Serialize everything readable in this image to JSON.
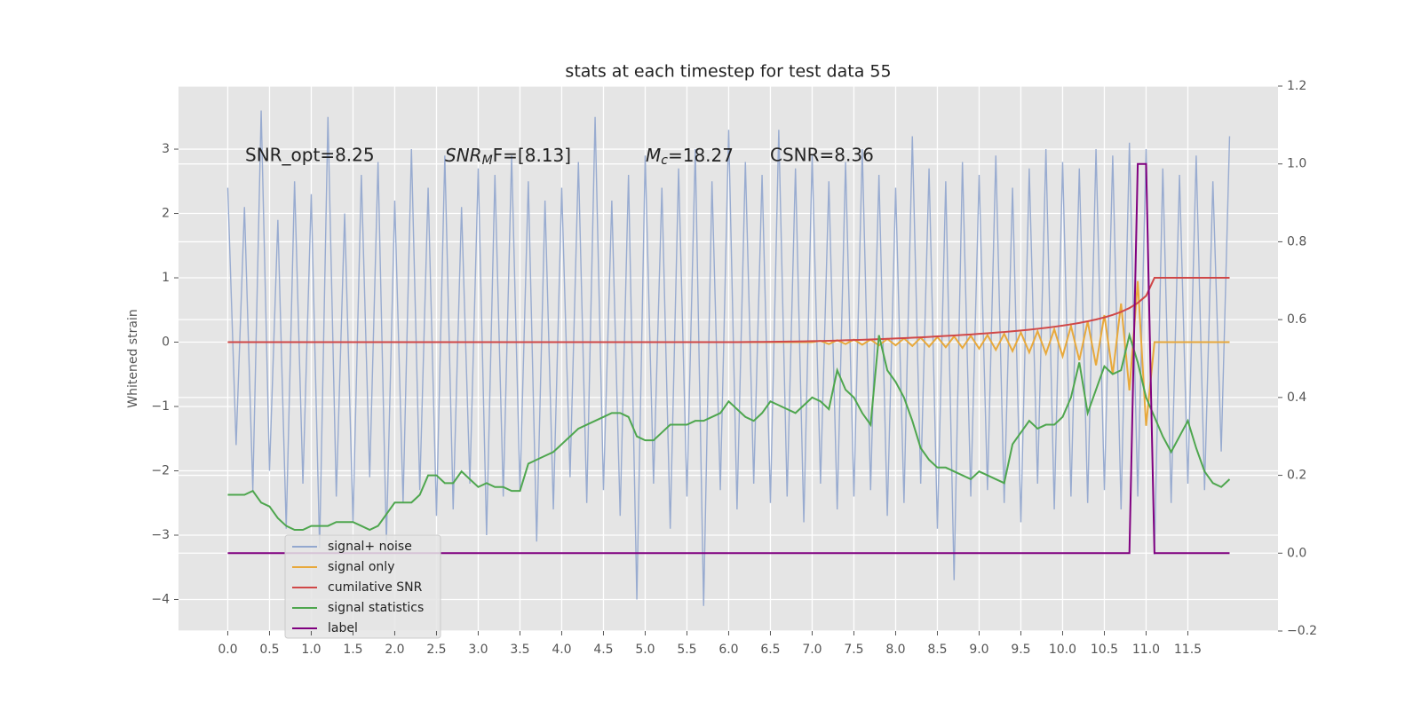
{
  "chart_data": {
    "type": "line",
    "title": "stats at each timestep for test data 55",
    "ylabel": "Whitened strain",
    "annotations": [
      "SNR_opt=8.25",
      {
        "base": "SNR",
        "sub": "M",
        "text": "F=[8.13]"
      },
      {
        "base": "M",
        "sub": "c",
        "text": "=18.27"
      },
      "CSNR=8.36"
    ],
    "x": [
      0.0,
      0.1,
      0.2,
      0.3,
      0.4,
      0.5,
      0.6,
      0.7,
      0.8,
      0.9,
      1.0,
      1.1,
      1.2,
      1.3,
      1.4,
      1.5,
      1.6,
      1.7,
      1.8,
      1.9,
      2.0,
      2.1,
      2.2,
      2.3,
      2.4,
      2.5,
      2.6,
      2.7,
      2.8,
      2.9,
      3.0,
      3.1,
      3.2,
      3.3,
      3.4,
      3.5,
      3.6,
      3.7,
      3.8,
      3.9,
      4.0,
      4.1,
      4.2,
      4.3,
      4.4,
      4.5,
      4.6,
      4.7,
      4.8,
      4.9,
      5.0,
      5.1,
      5.2,
      5.3,
      5.4,
      5.5,
      5.6,
      5.7,
      5.8,
      5.9,
      6.0,
      6.1,
      6.2,
      6.3,
      6.4,
      6.5,
      6.6,
      6.7,
      6.8,
      6.9,
      7.0,
      7.1,
      7.2,
      7.3,
      7.4,
      7.5,
      7.6,
      7.7,
      7.8,
      7.9,
      8.0,
      8.1,
      8.2,
      8.3,
      8.4,
      8.5,
      8.6,
      8.7,
      8.8,
      8.9,
      9.0,
      9.1,
      9.2,
      9.3,
      9.4,
      9.5,
      9.6,
      9.7,
      9.8,
      9.9,
      10.0,
      10.1,
      10.2,
      10.3,
      10.4,
      10.5,
      10.6,
      10.7,
      10.8,
      10.9,
      11.0,
      11.1,
      11.2,
      11.3,
      11.4,
      11.5,
      11.6,
      11.7,
      11.8,
      11.9,
      12.0
    ],
    "series": [
      {
        "name": "signal+ noise",
        "color": "#93a8cf",
        "values": [
          2.4,
          -1.6,
          2.1,
          -2.3,
          3.6,
          -2.0,
          1.9,
          -2.9,
          2.5,
          -2.2,
          2.3,
          -3.2,
          3.5,
          -2.4,
          2.0,
          -2.8,
          2.6,
          -2.1,
          2.8,
          -3.1,
          2.2,
          -2.5,
          3.0,
          -2.3,
          2.4,
          -2.7,
          2.9,
          -2.6,
          2.1,
          -2.2,
          2.7,
          -3.0,
          2.6,
          -2.4,
          2.9,
          -2.3,
          2.5,
          -3.1,
          2.2,
          -2.6,
          2.4,
          -2.1,
          2.8,
          -2.5,
          3.5,
          -2.3,
          2.2,
          -2.7,
          2.6,
          -4.0,
          2.9,
          -2.2,
          2.4,
          -2.9,
          2.7,
          -2.4,
          3.0,
          -4.1,
          2.5,
          -2.3,
          3.3,
          -2.6,
          2.8,
          -2.2,
          2.6,
          -2.5,
          3.3,
          -2.4,
          2.7,
          -2.8,
          2.9,
          -2.2,
          2.5,
          -2.6,
          2.8,
          -2.4,
          3.0,
          -2.3,
          2.6,
          -2.7,
          2.4,
          -2.5,
          3.2,
          -2.2,
          2.7,
          -2.9,
          2.5,
          -3.7,
          2.8,
          -2.4,
          2.6,
          -2.3,
          2.9,
          -2.5,
          2.4,
          -2.8,
          2.7,
          -2.2,
          3.0,
          -2.6,
          2.8,
          -2.4,
          2.7,
          -2.5,
          3.0,
          -2.3,
          2.9,
          -2.6,
          3.1,
          -2.4,
          3.0,
          -3.3,
          2.7,
          -2.5,
          2.6,
          -2.2,
          2.9,
          -2.3,
          2.5,
          -1.7,
          3.2
        ]
      },
      {
        "name": "signal only",
        "color": "#e8a93c",
        "values": [
          0,
          0,
          0,
          0,
          0,
          0,
          0,
          0,
          0,
          0,
          0,
          0,
          0,
          0,
          0,
          0,
          0,
          0,
          0,
          0,
          0,
          0,
          0,
          0,
          0,
          0,
          0,
          0,
          0,
          0,
          0,
          0,
          0,
          0,
          0,
          0,
          0,
          0,
          0,
          0,
          0,
          0,
          0,
          0,
          0,
          0,
          0,
          0,
          0,
          0,
          0,
          0,
          0,
          0,
          0,
          0,
          0,
          0,
          0,
          0,
          0,
          0,
          0,
          0,
          0,
          0,
          0,
          0,
          0,
          0,
          0,
          0.02,
          -0.03,
          0.03,
          -0.03,
          0.04,
          -0.04,
          0.04,
          -0.05,
          0.05,
          -0.05,
          0.06,
          -0.06,
          0.07,
          -0.07,
          0.08,
          -0.08,
          0.09,
          -0.09,
          0.1,
          -0.1,
          0.11,
          -0.12,
          0.13,
          -0.14,
          0.15,
          -0.16,
          0.17,
          -0.18,
          0.2,
          -0.22,
          0.25,
          -0.28,
          0.32,
          -0.36,
          0.42,
          -0.5,
          0.6,
          -0.75,
          0.95,
          -1.3,
          0,
          0,
          0,
          0,
          0,
          0,
          0,
          0,
          0,
          0
        ]
      },
      {
        "name": "cumilative SNR",
        "color": "#d04848",
        "values": [
          0,
          0,
          0,
          0,
          0,
          0,
          0,
          0,
          0,
          0,
          0,
          0,
          0,
          0,
          0,
          0,
          0,
          0,
          0,
          0,
          0,
          0,
          0,
          0,
          0,
          0,
          0,
          0,
          0,
          0,
          0,
          0,
          0,
          0,
          0,
          0,
          0,
          0,
          0,
          0,
          0,
          0,
          0,
          0,
          0,
          0,
          0,
          0,
          0,
          0,
          0,
          0,
          0,
          0,
          0,
          0,
          0,
          0,
          0,
          0,
          0,
          0.001,
          0.002,
          0.003,
          0.004,
          0.005,
          0.007,
          0.009,
          0.011,
          0.013,
          0.015,
          0.018,
          0.021,
          0.025,
          0.029,
          0.033,
          0.037,
          0.042,
          0.047,
          0.052,
          0.057,
          0.063,
          0.069,
          0.075,
          0.082,
          0.089,
          0.096,
          0.104,
          0.112,
          0.12,
          0.129,
          0.138,
          0.148,
          0.158,
          0.169,
          0.181,
          0.194,
          0.208,
          0.223,
          0.239,
          0.257,
          0.277,
          0.299,
          0.324,
          0.352,
          0.385,
          0.424,
          0.47,
          0.53,
          0.61,
          0.72,
          1.0,
          1.0,
          1.0,
          1.0,
          1.0,
          1.0,
          1.0,
          1.0,
          1.0,
          1.0
        ]
      },
      {
        "name": "signal statistics",
        "color": "#4ea64e",
        "axis": "y2",
        "values": [
          0.15,
          0.15,
          0.15,
          0.16,
          0.13,
          0.12,
          0.09,
          0.07,
          0.06,
          0.06,
          0.07,
          0.07,
          0.07,
          0.08,
          0.08,
          0.08,
          0.07,
          0.06,
          0.07,
          0.1,
          0.13,
          0.13,
          0.13,
          0.15,
          0.2,
          0.2,
          0.18,
          0.18,
          0.21,
          0.19,
          0.17,
          0.18,
          0.17,
          0.17,
          0.16,
          0.16,
          0.23,
          0.24,
          0.25,
          0.26,
          0.28,
          0.3,
          0.32,
          0.33,
          0.34,
          0.35,
          0.36,
          0.36,
          0.35,
          0.3,
          0.29,
          0.29,
          0.31,
          0.33,
          0.33,
          0.33,
          0.34,
          0.34,
          0.35,
          0.36,
          0.39,
          0.37,
          0.35,
          0.34,
          0.36,
          0.39,
          0.38,
          0.37,
          0.36,
          0.38,
          0.4,
          0.39,
          0.37,
          0.47,
          0.42,
          0.4,
          0.36,
          0.33,
          0.56,
          0.47,
          0.44,
          0.4,
          0.34,
          0.27,
          0.24,
          0.22,
          0.22,
          0.21,
          0.2,
          0.19,
          0.21,
          0.2,
          0.19,
          0.18,
          0.28,
          0.31,
          0.34,
          0.32,
          0.33,
          0.33,
          0.35,
          0.4,
          0.49,
          0.36,
          0.42,
          0.48,
          0.46,
          0.47,
          0.56,
          0.49,
          0.4,
          0.35,
          0.3,
          0.26,
          0.3,
          0.34,
          0.27,
          0.21,
          0.18,
          0.17,
          0.19
        ]
      },
      {
        "name": "label",
        "color": "#800080",
        "axis": "y2",
        "values": [
          0,
          0,
          0,
          0,
          0,
          0,
          0,
          0,
          0,
          0,
          0,
          0,
          0,
          0,
          0,
          0,
          0,
          0,
          0,
          0,
          0,
          0,
          0,
          0,
          0,
          0,
          0,
          0,
          0,
          0,
          0,
          0,
          0,
          0,
          0,
          0,
          0,
          0,
          0,
          0,
          0,
          0,
          0,
          0,
          0,
          0,
          0,
          0,
          0,
          0,
          0,
          0,
          0,
          0,
          0,
          0,
          0,
          0,
          0,
          0,
          0,
          0,
          0,
          0,
          0,
          0,
          0,
          0,
          0,
          0,
          0,
          0,
          0,
          0,
          0,
          0,
          0,
          0,
          0,
          0,
          0,
          0,
          0,
          0,
          0,
          0,
          0,
          0,
          0,
          0,
          0,
          0,
          0,
          0,
          0,
          0,
          0,
          0,
          0,
          0,
          0,
          0,
          0,
          0,
          0,
          0,
          0,
          0,
          0,
          1,
          1,
          0,
          0,
          0,
          0,
          0,
          0,
          0,
          0,
          0,
          0
        ]
      }
    ],
    "xlim": [
      -0.59,
      12.58
    ],
    "xticks": [
      {
        "value": 0,
        "label": "0.0"
      },
      0.5,
      {
        "value": 1,
        "label": "1.0"
      },
      1.5,
      {
        "value": 2,
        "label": "2.0"
      },
      2.5,
      {
        "value": 3,
        "label": "3.0"
      },
      3.5,
      {
        "value": 4,
        "label": "4.0"
      },
      4.5,
      {
        "value": 5,
        "label": "5.0"
      },
      5.5,
      {
        "value": 6,
        "label": "6.0"
      },
      6.5,
      {
        "value": 7,
        "label": "7.0"
      },
      7.5,
      {
        "value": 8,
        "label": "8.0"
      },
      8.5,
      {
        "value": 9,
        "label": "9.0"
      },
      9.5,
      {
        "value": 10,
        "label": "10.0"
      },
      10.5,
      {
        "value": 11,
        "label": "11.0"
      },
      11.5
    ],
    "ylim": [
      -4.49,
      3.98
    ],
    "yticks": [
      {
        "value": -4,
        "label": "−4"
      },
      {
        "value": -3,
        "label": "−3"
      },
      {
        "value": -2,
        "label": "−2"
      },
      {
        "value": -1,
        "label": "−1"
      },
      0,
      1,
      2,
      3
    ],
    "y2lim": [
      -0.2,
      1.2
    ],
    "y2ticks": [
      {
        "value": -0.2,
        "label": "−0.2"
      },
      {
        "value": 0,
        "label": "0.0"
      },
      0.2,
      0.4,
      0.6,
      0.8,
      {
        "value": 1,
        "label": "1.0"
      },
      1.2
    ],
    "grid": true,
    "legend": "lower left"
  }
}
